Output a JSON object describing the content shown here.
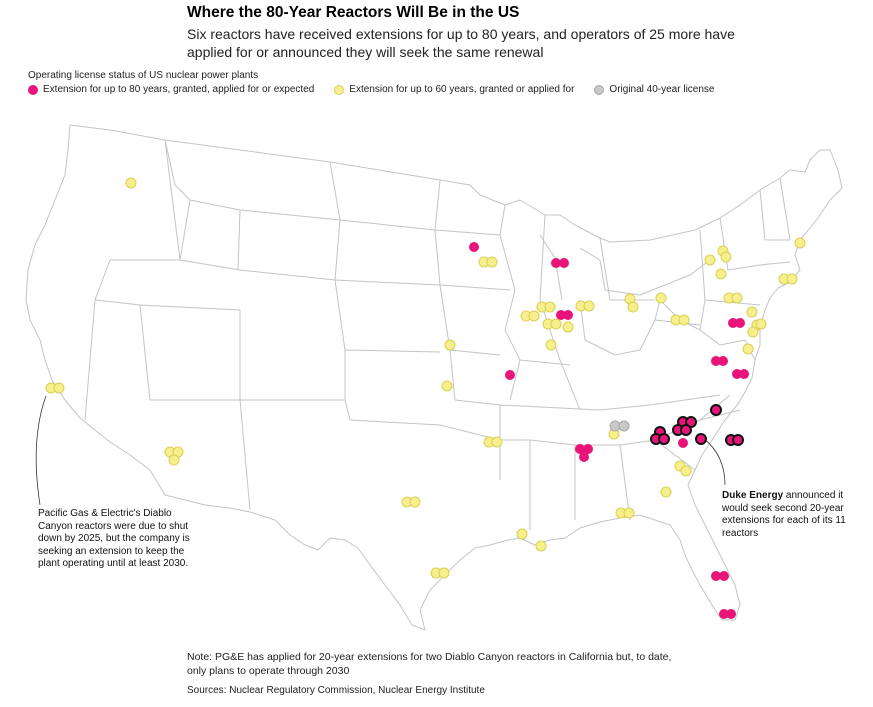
{
  "title": "Where the 80-Year Reactors Will Be in the US",
  "subtitle": "Six reactors have received extensions for up to 80 years, and operators of 25 more have applied for or announced they will seek the same renewal",
  "legend": {
    "title": "Operating license status of US nuclear power plants",
    "items": [
      {
        "label": "Extension for up to 80 years, granted, applied for or expected",
        "color": "#e8147a"
      },
      {
        "label": "Extension for up to 60 years, granted or applied for",
        "color": "#f7ef8c"
      },
      {
        "label": "Original 40-year license",
        "color": "#c8c8c8"
      }
    ]
  },
  "annotations": {
    "diablo": "Pacific Gas & Electric's Diablo Canyon reactors were due to shut down by 2025, but the company is seeking an extension to keep the plant operating until at least 2030.",
    "duke_bold": "Duke Energy",
    "duke_rest": " announced it would seek second 20-year extensions for each of its 11 reactors"
  },
  "note": "Note: PG&E has applied for 20-year extensions for two Diablo Canyon reactors in California but, to date, only plans to operate through 2030",
  "source": "Sources: Nuclear Regulatory Commission, Nuclear Energy Institute",
  "colors": {
    "eighty": "#e8147a",
    "sixty": "#f7ef8c",
    "forty": "#c8c8c8",
    "state_border": "#c4c4c4",
    "duke_outline": "#111111"
  }
}
